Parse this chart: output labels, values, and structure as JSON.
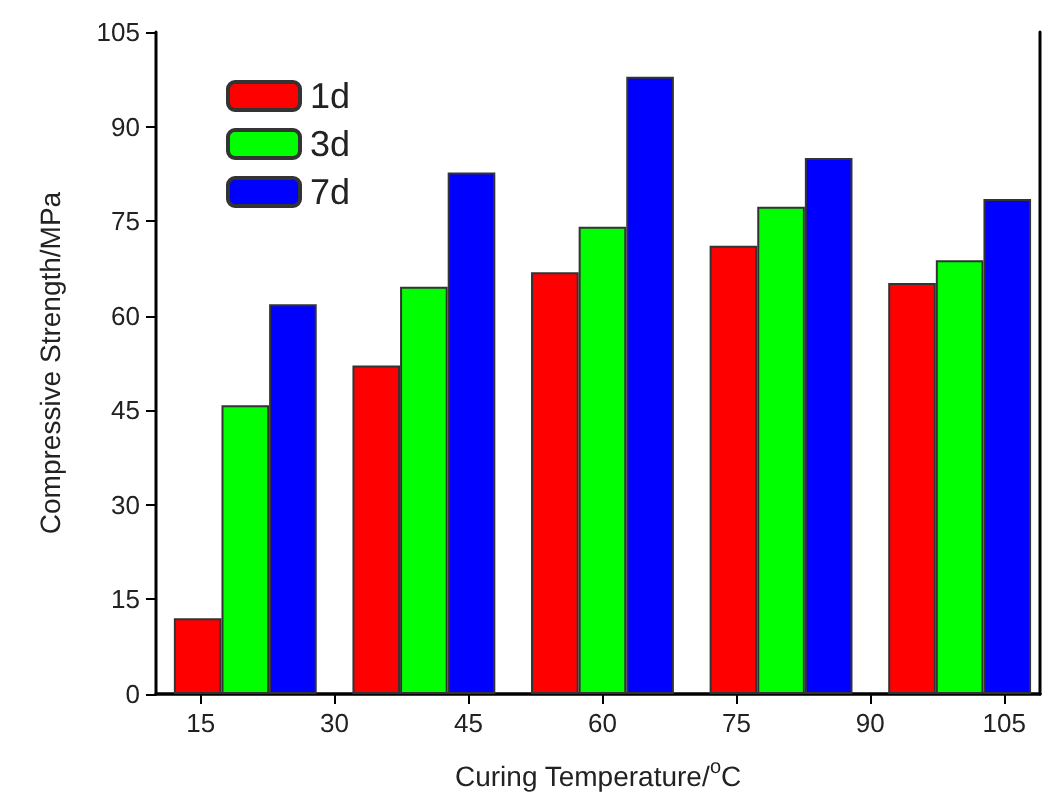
{
  "chart_data": {
    "type": "bar",
    "xlabel": "Curing Temperature/$^{o}$C",
    "ylabel": "Compressive Strength/MPa",
    "x": [
      20,
      40,
      60,
      80,
      100
    ],
    "series": [
      {
        "name": "1d",
        "color": "#ff0000",
        "values": [
          12,
          52.1,
          66.9,
          71.1,
          65.2
        ]
      },
      {
        "name": "3d",
        "color": "#00ff00",
        "values": [
          45.8,
          64.6,
          74.1,
          77.3,
          68.8
        ]
      },
      {
        "name": "7d",
        "color": "#0000ff",
        "values": [
          61.8,
          82.7,
          97.9,
          85,
          78.5
        ]
      }
    ],
    "xlim": [
      10,
      109
    ],
    "xticks": [
      15,
      30,
      45,
      60,
      75,
      90,
      105
    ],
    "ylim": [
      0,
      105
    ],
    "yticks": [
      0,
      15,
      30,
      45,
      60,
      75,
      90,
      105
    ],
    "grid": false,
    "legend": "top left"
  }
}
